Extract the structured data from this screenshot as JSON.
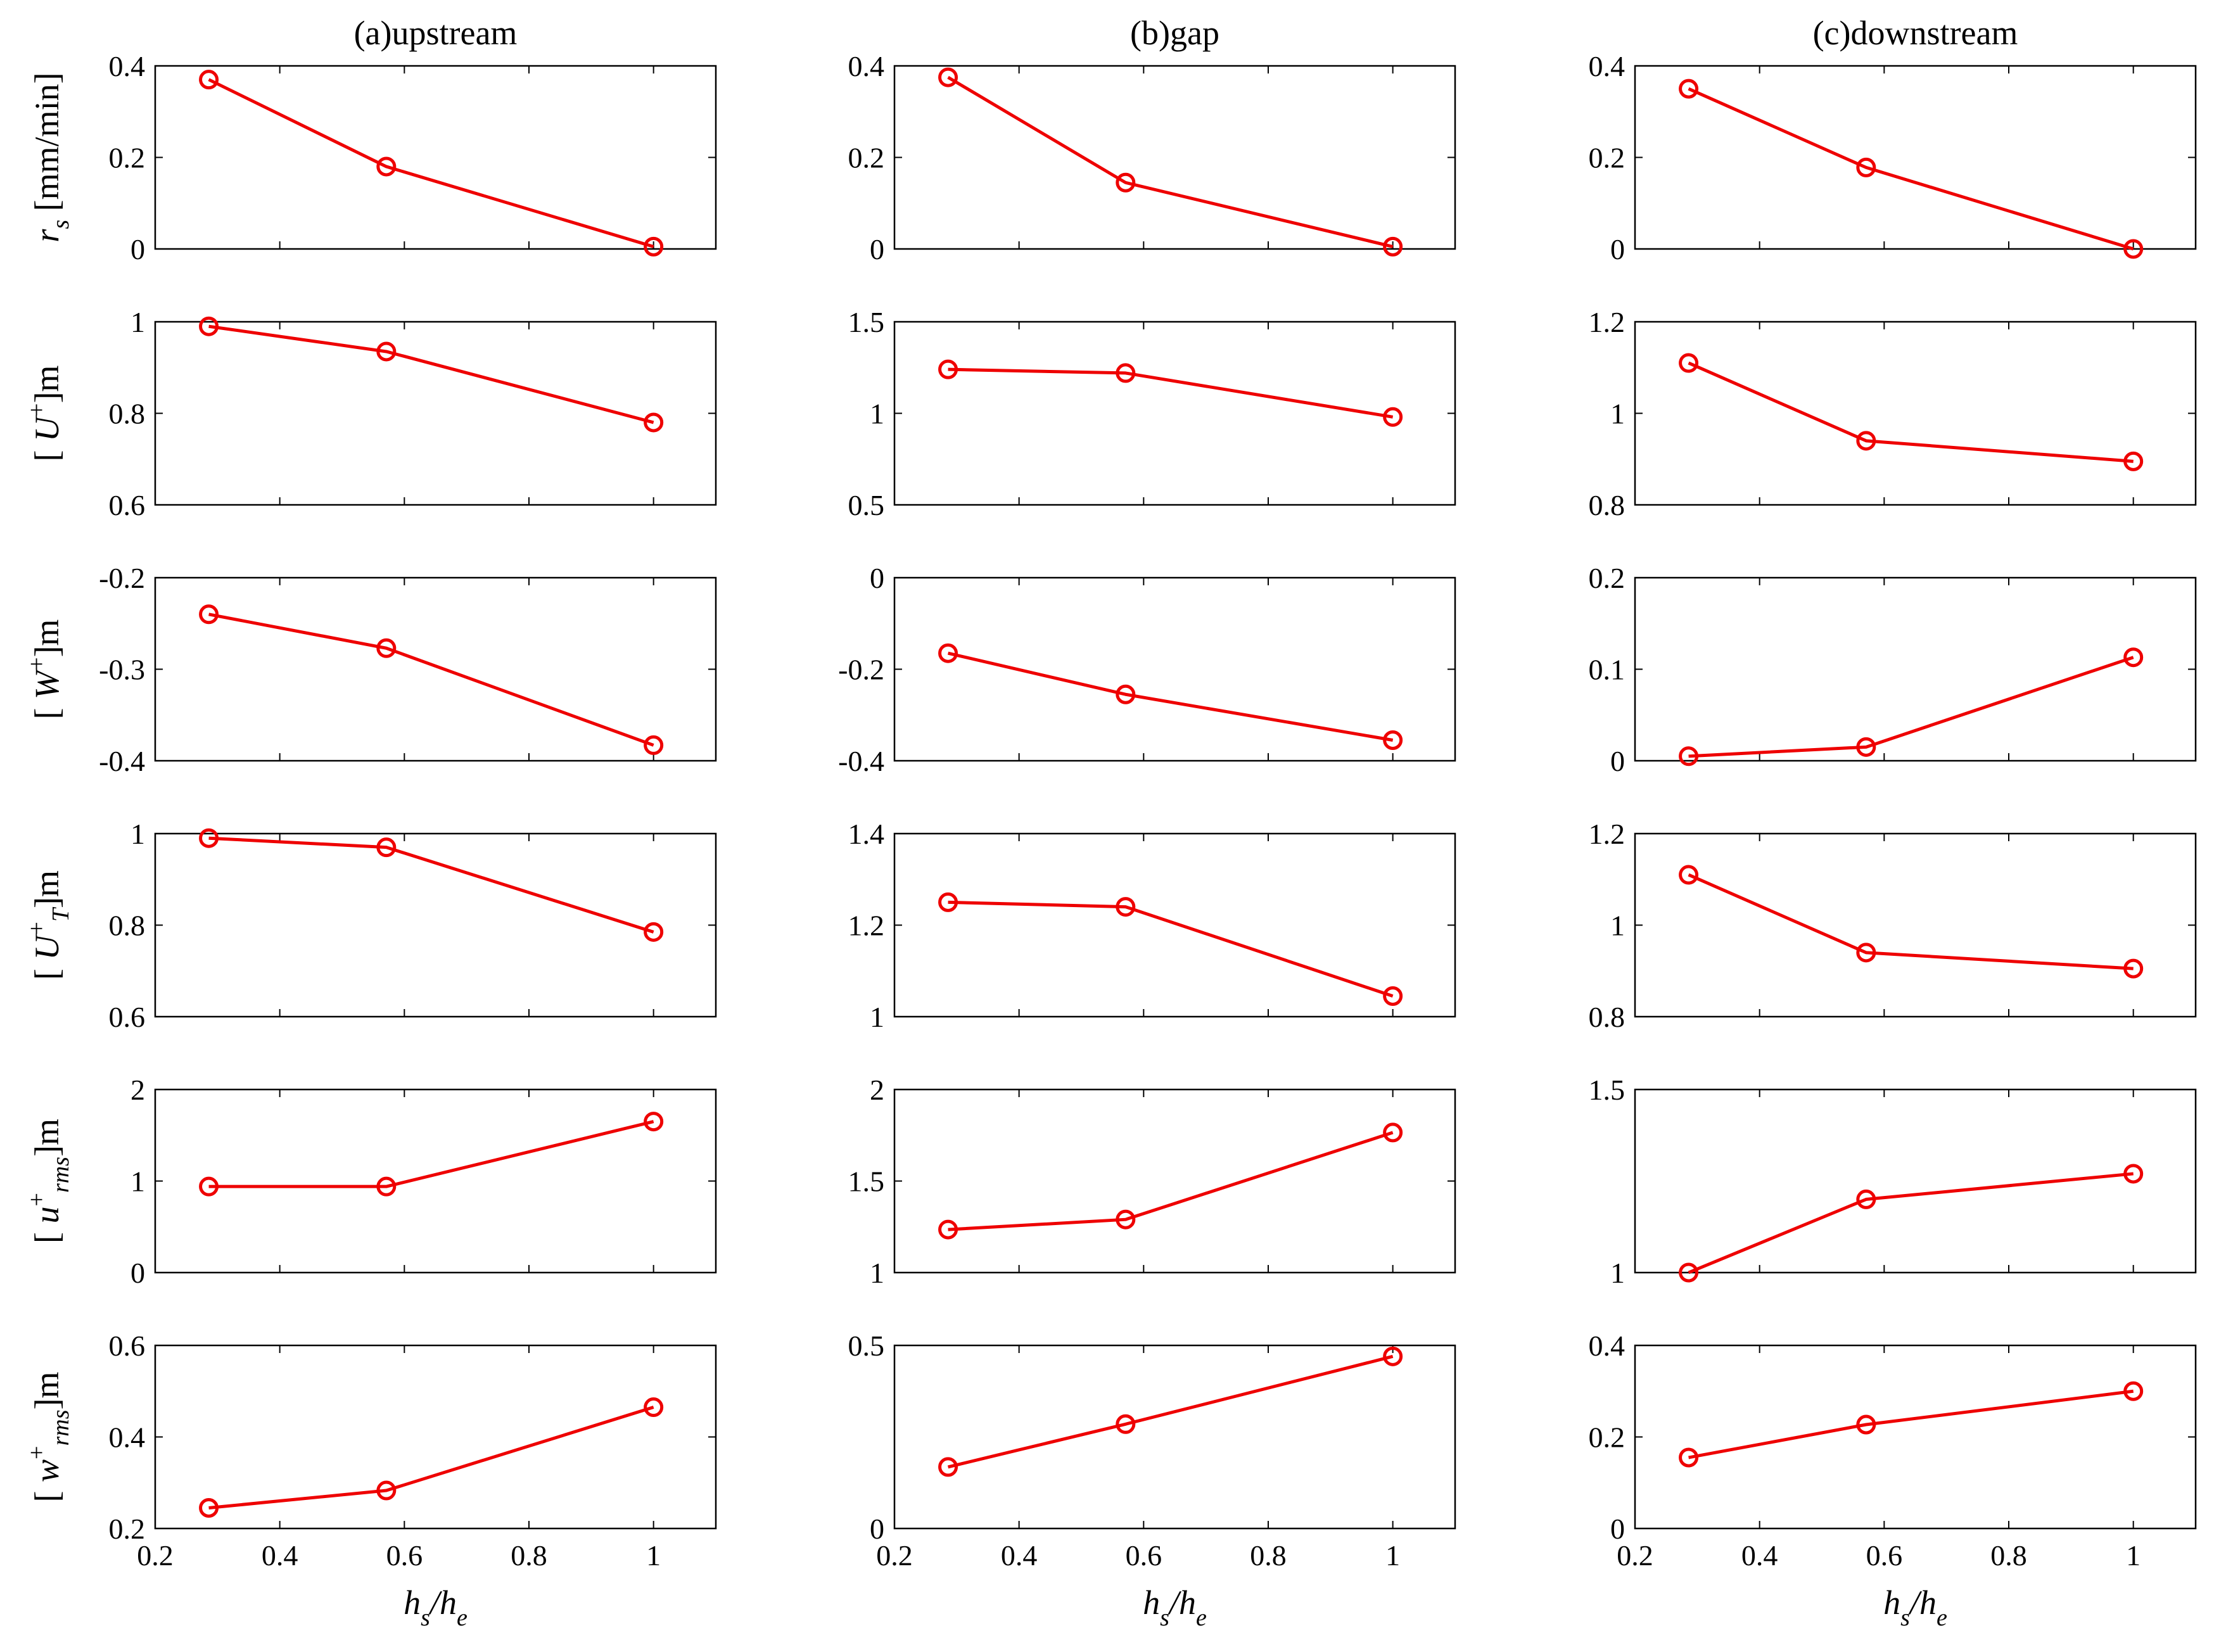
{
  "columns": [
    {
      "title": "(a)upstream"
    },
    {
      "title": "(b)gap"
    },
    {
      "title": "(c)downstream"
    }
  ],
  "rows": [
    {
      "label": {
        "pre": "",
        "main": "r",
        "sub": "s",
        "sup": "",
        "suffix": " [mm/min]"
      }
    },
    {
      "label": {
        "pre": "[ ",
        "main": "U",
        "sub": "",
        "sup": "+",
        "suffix": "]m"
      }
    },
    {
      "label": {
        "pre": "[ ",
        "main": "W",
        "sub": "",
        "sup": "+",
        "suffix": "]m"
      }
    },
    {
      "label": {
        "pre": "[ ",
        "main": "U",
        "sub": "T",
        "sup": "+",
        "suffix": "]m"
      }
    },
    {
      "label": {
        "pre": "[ ",
        "main": "u",
        "sub": "rms",
        "sup": "+",
        "suffix": "]m"
      }
    },
    {
      "label": {
        "pre": "[ ",
        "main": "w",
        "sub": "rms",
        "sup": "+",
        "suffix": "]m"
      }
    }
  ],
  "xaxis": {
    "label_main": "h",
    "label_sub1": "s",
    "label_sep": "/h",
    "label_sub2": "e"
  },
  "style": {
    "line_color": "#ee0000"
  },
  "chart_data": [
    {
      "type": "line",
      "column": "(a)upstream",
      "row": 0,
      "x": [
        0.286,
        0.571,
        1.0
      ],
      "y": [
        0.37,
        0.18,
        0.005
      ],
      "xlim": [
        0.2,
        1.1
      ],
      "ylim": [
        0,
        0.4
      ],
      "xticks": [
        0.2,
        0.4,
        0.6,
        0.8,
        1
      ],
      "yticks": [
        0,
        0.2,
        0.4
      ],
      "ytick_labels": [
        "0",
        "0.2",
        "0.4"
      ],
      "xtick_labels": [
        "0.2",
        "0.4",
        "0.6",
        "0.8",
        "1"
      ]
    },
    {
      "type": "line",
      "column": "(b)gap",
      "row": 0,
      "x": [
        0.286,
        0.571,
        1.0
      ],
      "y": [
        0.375,
        0.145,
        0.005
      ],
      "xlim": [
        0.2,
        1.1
      ],
      "ylim": [
        0,
        0.4
      ],
      "xticks": [
        0.2,
        0.4,
        0.6,
        0.8,
        1
      ],
      "yticks": [
        0,
        0.2,
        0.4
      ],
      "ytick_labels": [
        "0",
        "0.2",
        "0.4"
      ],
      "xtick_labels": [
        "0.2",
        "0.4",
        "0.6",
        "0.8",
        "1"
      ]
    },
    {
      "type": "line",
      "column": "(c)downstream",
      "row": 0,
      "x": [
        0.286,
        0.571,
        1.0
      ],
      "y": [
        0.35,
        0.178,
        0.0
      ],
      "xlim": [
        0.2,
        1.1
      ],
      "ylim": [
        0,
        0.4
      ],
      "xticks": [
        0.2,
        0.4,
        0.6,
        0.8,
        1
      ],
      "yticks": [
        0,
        0.2,
        0.4
      ],
      "ytick_labels": [
        "0",
        "0.2",
        "0.4"
      ],
      "xtick_labels": [
        "0.2",
        "0.4",
        "0.6",
        "0.8",
        "1"
      ]
    },
    {
      "type": "line",
      "column": "(a)upstream",
      "row": 1,
      "x": [
        0.286,
        0.571,
        1.0
      ],
      "y": [
        0.99,
        0.935,
        0.78
      ],
      "xlim": [
        0.2,
        1.1
      ],
      "ylim": [
        0.6,
        1.0
      ],
      "xticks": [
        0.2,
        0.4,
        0.6,
        0.8,
        1
      ],
      "yticks": [
        0.6,
        0.8,
        1
      ],
      "ytick_labels": [
        "0.6",
        "0.8",
        "1"
      ],
      "xtick_labels": [
        "0.2",
        "0.4",
        "0.6",
        "0.8",
        "1"
      ]
    },
    {
      "type": "line",
      "column": "(b)gap",
      "row": 1,
      "x": [
        0.286,
        0.571,
        1.0
      ],
      "y": [
        1.24,
        1.22,
        0.98
      ],
      "xlim": [
        0.2,
        1.1
      ],
      "ylim": [
        0.5,
        1.5
      ],
      "xticks": [
        0.2,
        0.4,
        0.6,
        0.8,
        1
      ],
      "yticks": [
        0.5,
        1,
        1.5
      ],
      "ytick_labels": [
        "0.5",
        "1",
        "1.5"
      ],
      "xtick_labels": [
        "0.2",
        "0.4",
        "0.6",
        "0.8",
        "1"
      ]
    },
    {
      "type": "line",
      "column": "(c)downstream",
      "row": 1,
      "x": [
        0.286,
        0.571,
        1.0
      ],
      "y": [
        1.11,
        0.94,
        0.895
      ],
      "xlim": [
        0.2,
        1.1
      ],
      "ylim": [
        0.8,
        1.2
      ],
      "xticks": [
        0.2,
        0.4,
        0.6,
        0.8,
        1
      ],
      "yticks": [
        0.8,
        1,
        1.2
      ],
      "ytick_labels": [
        "0.8",
        "1",
        "1.2"
      ],
      "xtick_labels": [
        "0.2",
        "0.4",
        "0.6",
        "0.8",
        "1"
      ]
    },
    {
      "type": "line",
      "column": "(a)upstream",
      "row": 2,
      "x": [
        0.286,
        0.571,
        1.0
      ],
      "y": [
        -0.24,
        -0.277,
        -0.383
      ],
      "xlim": [
        0.2,
        1.1
      ],
      "ylim": [
        -0.4,
        -0.2
      ],
      "xticks": [
        0.2,
        0.4,
        0.6,
        0.8,
        1
      ],
      "yticks": [
        -0.4,
        -0.3,
        -0.2
      ],
      "ytick_labels": [
        "-0.4",
        "-0.3",
        "-0.2"
      ],
      "xtick_labels": [
        "0.2",
        "0.4",
        "0.6",
        "0.8",
        "1"
      ]
    },
    {
      "type": "line",
      "column": "(b)gap",
      "row": 2,
      "x": [
        0.286,
        0.571,
        1.0
      ],
      "y": [
        -0.165,
        -0.255,
        -0.355
      ],
      "xlim": [
        0.2,
        1.1
      ],
      "ylim": [
        -0.4,
        0
      ],
      "xticks": [
        0.2,
        0.4,
        0.6,
        0.8,
        1
      ],
      "yticks": [
        -0.4,
        -0.2,
        0
      ],
      "ytick_labels": [
        "-0.4",
        "-0.2",
        "0"
      ],
      "xtick_labels": [
        "0.2",
        "0.4",
        "0.6",
        "0.8",
        "1"
      ]
    },
    {
      "type": "line",
      "column": "(c)downstream",
      "row": 2,
      "x": [
        0.286,
        0.571,
        1.0
      ],
      "y": [
        0.005,
        0.015,
        0.113
      ],
      "xlim": [
        0.2,
        1.1
      ],
      "ylim": [
        0,
        0.2
      ],
      "xticks": [
        0.2,
        0.4,
        0.6,
        0.8,
        1
      ],
      "yticks": [
        0,
        0.1,
        0.2
      ],
      "ytick_labels": [
        "0",
        "0.1",
        "0.2"
      ],
      "xtick_labels": [
        "0.2",
        "0.4",
        "0.6",
        "0.8",
        "1"
      ]
    },
    {
      "type": "line",
      "column": "(a)upstream",
      "row": 3,
      "x": [
        0.286,
        0.571,
        1.0
      ],
      "y": [
        0.99,
        0.97,
        0.785
      ],
      "xlim": [
        0.2,
        1.1
      ],
      "ylim": [
        0.6,
        1.0
      ],
      "xticks": [
        0.2,
        0.4,
        0.6,
        0.8,
        1
      ],
      "yticks": [
        0.6,
        0.8,
        1
      ],
      "ytick_labels": [
        "0.6",
        "0.8",
        "1"
      ],
      "xtick_labels": [
        "0.2",
        "0.4",
        "0.6",
        "0.8",
        "1"
      ]
    },
    {
      "type": "line",
      "column": "(b)gap",
      "row": 3,
      "x": [
        0.286,
        0.571,
        1.0
      ],
      "y": [
        1.25,
        1.24,
        1.045
      ],
      "xlim": [
        0.2,
        1.1
      ],
      "ylim": [
        1.0,
        1.4
      ],
      "xticks": [
        0.2,
        0.4,
        0.6,
        0.8,
        1
      ],
      "yticks": [
        1,
        1.2,
        1.4
      ],
      "ytick_labels": [
        "1",
        "1.2",
        "1.4"
      ],
      "xtick_labels": [
        "0.2",
        "0.4",
        "0.6",
        "0.8",
        "1"
      ]
    },
    {
      "type": "line",
      "column": "(c)downstream",
      "row": 3,
      "x": [
        0.286,
        0.571,
        1.0
      ],
      "y": [
        1.11,
        0.94,
        0.905
      ],
      "xlim": [
        0.2,
        1.1
      ],
      "ylim": [
        0.8,
        1.2
      ],
      "xticks": [
        0.2,
        0.4,
        0.6,
        0.8,
        1
      ],
      "yticks": [
        0.8,
        1,
        1.2
      ],
      "ytick_labels": [
        "0.8",
        "1",
        "1.2"
      ],
      "xtick_labels": [
        "0.2",
        "0.4",
        "0.6",
        "0.8",
        "1"
      ]
    },
    {
      "type": "line",
      "column": "(a)upstream",
      "row": 4,
      "x": [
        0.286,
        0.571,
        1.0
      ],
      "y": [
        0.94,
        0.94,
        1.65
      ],
      "xlim": [
        0.2,
        1.1
      ],
      "ylim": [
        0,
        2
      ],
      "xticks": [
        0.2,
        0.4,
        0.6,
        0.8,
        1
      ],
      "yticks": [
        0,
        1,
        2
      ],
      "ytick_labels": [
        "0",
        "1",
        "2"
      ],
      "xtick_labels": [
        "0.2",
        "0.4",
        "0.6",
        "0.8",
        "1"
      ]
    },
    {
      "type": "line",
      "column": "(b)gap",
      "row": 4,
      "x": [
        0.286,
        0.571,
        1.0
      ],
      "y": [
        1.235,
        1.29,
        1.765
      ],
      "xlim": [
        0.2,
        1.1
      ],
      "ylim": [
        1,
        2
      ],
      "xticks": [
        0.2,
        0.4,
        0.6,
        0.8,
        1
      ],
      "yticks": [
        1,
        1.5,
        2
      ],
      "ytick_labels": [
        "1",
        "1.5",
        "2"
      ],
      "xtick_labels": [
        "0.2",
        "0.4",
        "0.6",
        "0.8",
        "1"
      ]
    },
    {
      "type": "line",
      "column": "(c)downstream",
      "row": 4,
      "x": [
        0.286,
        0.571,
        1.0
      ],
      "y": [
        1.0,
        1.2,
        1.27
      ],
      "xlim": [
        0.2,
        1.1
      ],
      "ylim": [
        1,
        1.5
      ],
      "xticks": [
        0.2,
        0.4,
        0.6,
        0.8,
        1
      ],
      "yticks": [
        1,
        1.5
      ],
      "ytick_labels": [
        "1",
        "1.5"
      ],
      "xtick_labels": [
        "0.2",
        "0.4",
        "0.6",
        "0.8",
        "1"
      ]
    },
    {
      "type": "line",
      "column": "(a)upstream",
      "row": 5,
      "x": [
        0.286,
        0.571,
        1.0
      ],
      "y": [
        0.245,
        0.283,
        0.465
      ],
      "xlim": [
        0.2,
        1.1
      ],
      "ylim": [
        0.2,
        0.6
      ],
      "xticks": [
        0.2,
        0.4,
        0.6,
        0.8,
        1
      ],
      "yticks": [
        0.2,
        0.4,
        0.6
      ],
      "ytick_labels": [
        "0.2",
        "0.4",
        "0.6"
      ],
      "xtick_labels": [
        "0.2",
        "0.4",
        "0.6",
        "0.8",
        "1"
      ]
    },
    {
      "type": "line",
      "column": "(b)gap",
      "row": 5,
      "x": [
        0.286,
        0.571,
        1.0
      ],
      "y": [
        0.168,
        0.285,
        0.47
      ],
      "xlim": [
        0.2,
        1.1
      ],
      "ylim": [
        0,
        0.5
      ],
      "xticks": [
        0.2,
        0.4,
        0.6,
        0.8,
        1
      ],
      "yticks": [
        0,
        0.5
      ],
      "ytick_labels": [
        "0",
        "0.5"
      ],
      "xtick_labels": [
        "0.2",
        "0.4",
        "0.6",
        "0.8",
        "1"
      ]
    },
    {
      "type": "line",
      "column": "(c)downstream",
      "row": 5,
      "x": [
        0.286,
        0.571,
        1.0
      ],
      "y": [
        0.155,
        0.227,
        0.3
      ],
      "xlim": [
        0.2,
        1.1
      ],
      "ylim": [
        0,
        0.4
      ],
      "xticks": [
        0.2,
        0.4,
        0.6,
        0.8,
        1
      ],
      "yticks": [
        0,
        0.2,
        0.4
      ],
      "ytick_labels": [
        "0",
        "0.2",
        "0.4"
      ],
      "xtick_labels": [
        "0.2",
        "0.4",
        "0.6",
        "0.8",
        "1"
      ]
    }
  ]
}
